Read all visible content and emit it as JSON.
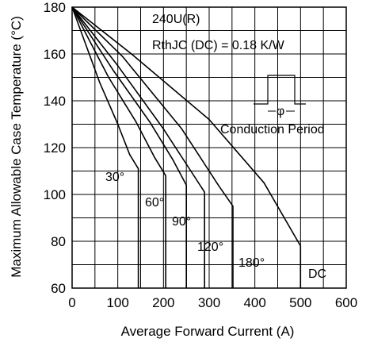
{
  "chart_data": {
    "type": "line",
    "xlabel": "Average Forward Current (A)",
    "ylabel": "Maximum Allowable Case Temperature (°C)",
    "xlim": [
      0,
      600
    ],
    "ylim": [
      60,
      180
    ],
    "x_ticks": [
      "0",
      "100",
      "200",
      "300",
      "400",
      "500",
      "600"
    ],
    "y_ticks": [
      "60",
      "80",
      "100",
      "120",
      "140",
      "160",
      "180"
    ],
    "grid": true,
    "annotations": {
      "device": "240U(R)",
      "rth": "RthJC (DC) = 0.18 K/W",
      "inset_symbol": "φ",
      "inset_caption": "Conduction Period"
    },
    "series": [
      {
        "name": "30°",
        "x": [
          0,
          60,
          100,
          126,
          145,
          145
        ],
        "y": [
          180,
          148,
          130,
          117,
          111,
          60
        ]
      },
      {
        "name": "60°",
        "x": [
          0,
          80,
          140,
          180,
          205,
          205
        ],
        "y": [
          180,
          150,
          131,
          116,
          108,
          60
        ]
      },
      {
        "name": "90°",
        "x": [
          0,
          90,
          170,
          220,
          250,
          250
        ],
        "y": [
          180,
          153,
          131,
          115,
          104,
          60
        ]
      },
      {
        "name": "120°",
        "x": [
          0,
          100,
          200,
          260,
          290,
          290
        ],
        "y": [
          180,
          155,
          128,
          110,
          101,
          60
        ]
      },
      {
        "name": "180°",
        "x": [
          0,
          110,
          240,
          320,
          352,
          352
        ],
        "y": [
          180,
          159,
          128,
          104,
          95,
          60
        ]
      },
      {
        "name": "DC",
        "x": [
          0,
          130,
          300,
          420,
          500,
          500
        ],
        "y": [
          180,
          160,
          132,
          105,
          78,
          60
        ]
      }
    ]
  }
}
